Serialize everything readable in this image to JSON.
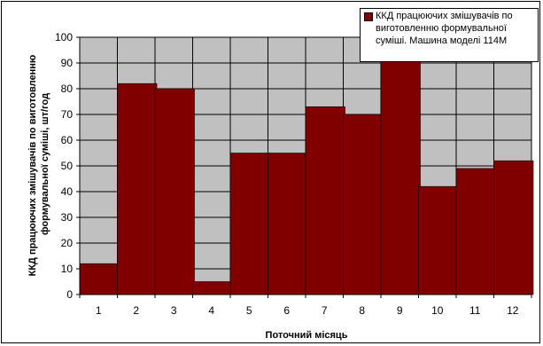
{
  "chart_data": {
    "type": "bar",
    "categories": [
      "1",
      "2",
      "3",
      "4",
      "5",
      "6",
      "7",
      "8",
      "9",
      "10",
      "11",
      "12"
    ],
    "series": [
      {
        "name": "ККД працюючих змішувачів по виготовленню формувальної суміші. Машина моделі 114М",
        "values": [
          12,
          82,
          80,
          5,
          55,
          55,
          73,
          70,
          91,
          42,
          49,
          52
        ]
      }
    ],
    "xlabel": "Поточний місяць",
    "ylabel": "ККД працюючих змішувачів по виготовленню формувальної суміші, шт/год",
    "ylim": [
      0,
      100
    ],
    "yticks": [
      "0",
      "10",
      "20",
      "30",
      "40",
      "50",
      "60",
      "70",
      "80",
      "90",
      "100"
    ],
    "grid": true,
    "legend_position": "top-right",
    "colors": {
      "bar": "#800000",
      "plot_background": "#c0c0c0",
      "grid": "#000000"
    }
  }
}
